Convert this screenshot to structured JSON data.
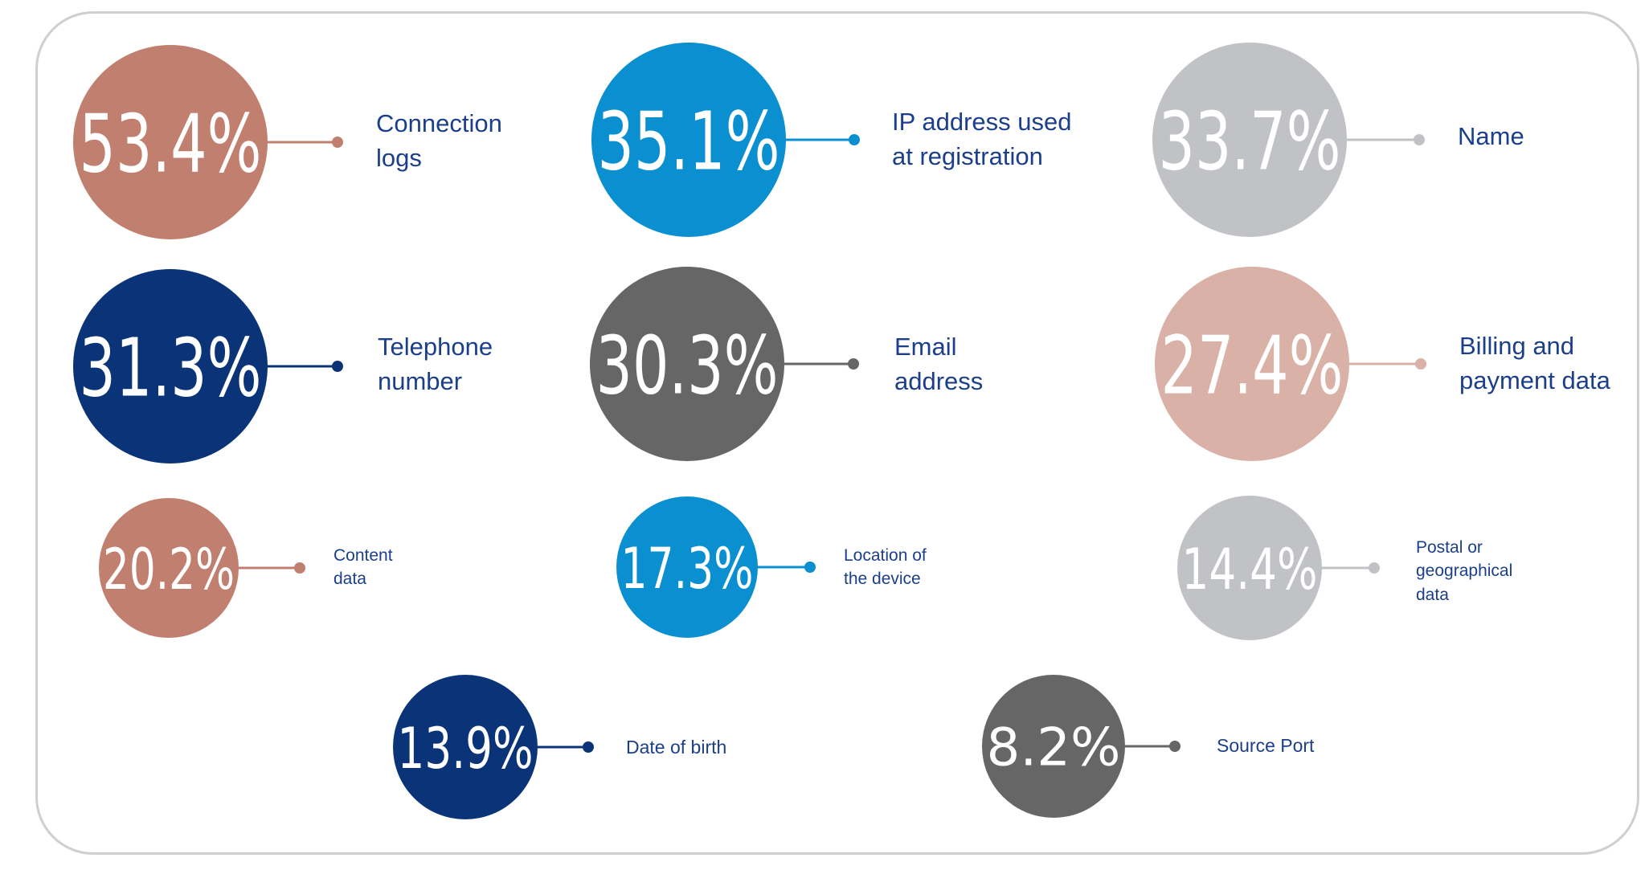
{
  "chart_data": {
    "type": "bubble",
    "title": "",
    "colors": {
      "rose": "#c17f6f",
      "blue": "#0a8fd0",
      "silver": "#c1c2c6",
      "navy": "#0b3478",
      "gray": "#666666",
      "blush": "#d9b1a7",
      "label_text": "#1b3f8b",
      "frame": "#cfcfcf"
    },
    "items": [
      {
        "value": 53.4,
        "value_text": "53.4%",
        "label": "Connection\nlogs",
        "color": "#c17f6f"
      },
      {
        "value": 35.1,
        "value_text": "35.1%",
        "label": "IP address used\nat registration",
        "color": "#0a8fd0"
      },
      {
        "value": 33.7,
        "value_text": "33.7%",
        "label": "Name",
        "color": "#c1c2c6"
      },
      {
        "value": 31.3,
        "value_text": "31.3%",
        "label": "Telephone\nnumber",
        "color": "#0b3478"
      },
      {
        "value": 30.3,
        "value_text": "30.3%",
        "label": "Email\naddress",
        "color": "#666666"
      },
      {
        "value": 27.4,
        "value_text": "27.4%",
        "label": "Billing and\npayment data",
        "color": "#d9b1a7"
      },
      {
        "value": 20.2,
        "value_text": "20.2%",
        "label": "Content\ndata",
        "color": "#c17f6f"
      },
      {
        "value": 17.3,
        "value_text": "17.3%",
        "label": "Location of\nthe device",
        "color": "#0a8fd0"
      },
      {
        "value": 14.4,
        "value_text": "14.4%",
        "label": "Postal or\ngeographical\ndata",
        "color": "#c1c2c6"
      },
      {
        "value": 13.9,
        "value_text": "13.9%",
        "label": "Date of birth",
        "color": "#0b3478"
      },
      {
        "value": 8.2,
        "value_text": "8.2%",
        "label": "Source Port",
        "color": "#666666"
      }
    ]
  }
}
